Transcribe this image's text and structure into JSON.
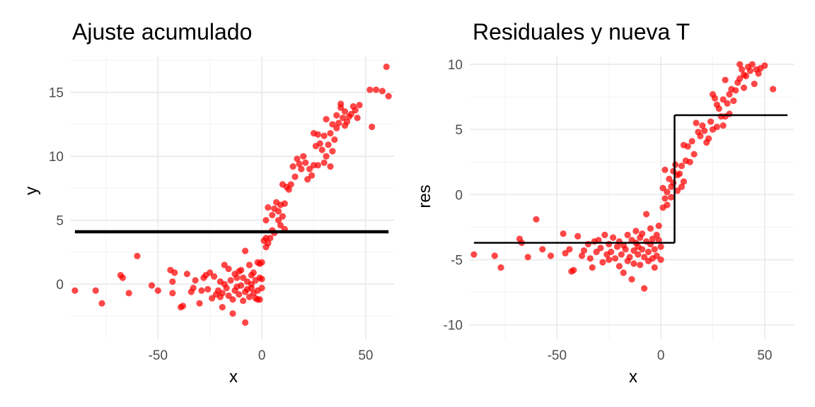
{
  "chart_data": [
    {
      "type": "scatter",
      "title": "Ajuste acumulado",
      "xlabel": "x",
      "ylabel": "y",
      "xlim": [
        -92,
        64
      ],
      "ylim": [
        -4.3,
        17.8
      ],
      "xticks": [
        -50,
        0,
        50
      ],
      "xtick_labels": [
        "-50",
        "0",
        "50"
      ],
      "yticks": [
        0,
        5,
        10,
        15
      ],
      "ytick_labels": [
        "0",
        "5",
        "10",
        "15"
      ],
      "grid": true,
      "legend": "none",
      "point_color": "#ff0000",
      "line_color": "#000000",
      "points": [
        [
          -90,
          -0.5
        ],
        [
          -80,
          -0.5
        ],
        [
          -77,
          -1.5
        ],
        [
          -68,
          0.7
        ],
        [
          -67,
          0.5
        ],
        [
          -64,
          -0.7
        ],
        [
          -60,
          2.2
        ],
        [
          -53,
          -0.1
        ],
        [
          -50,
          -0.5
        ],
        [
          -44,
          1.1
        ],
        [
          -43,
          -0.7
        ],
        [
          -43,
          0.2
        ],
        [
          -42,
          0.9
        ],
        [
          -39,
          -1.8
        ],
        [
          -38,
          -1.7
        ],
        [
          -36,
          0.8
        ],
        [
          -34,
          -0.6
        ],
        [
          -33,
          -0.3
        ],
        [
          -32,
          0.3
        ],
        [
          -30,
          -1.5
        ],
        [
          -29,
          -0.5
        ],
        [
          -28,
          0.5
        ],
        [
          -27,
          0.7
        ],
        [
          -26,
          -0.4
        ],
        [
          -25,
          0.9
        ],
        [
          -24,
          -1.1
        ],
        [
          -23,
          0.6
        ],
        [
          -22,
          -0.8
        ],
        [
          -21,
          -0.5
        ],
        [
          -20,
          -1.0
        ],
        [
          -20,
          0.2
        ],
        [
          -19,
          -0.7
        ],
        [
          -19,
          -1.8
        ],
        [
          -18,
          0.0
        ],
        [
          -18,
          1.5
        ],
        [
          -17,
          -0.3
        ],
        [
          -16,
          -0.9
        ],
        [
          -16,
          1.2
        ],
        [
          -15,
          0.3
        ],
        [
          -14,
          -1.2
        ],
        [
          -14,
          -2.3
        ],
        [
          -13,
          0.8
        ],
        [
          -13,
          -0.5
        ],
        [
          -12,
          -0.2
        ],
        [
          -12,
          0.5
        ],
        [
          -11,
          1.0
        ],
        [
          -11,
          -0.8
        ],
        [
          -10,
          -0.1
        ],
        [
          -10,
          1.1
        ],
        [
          -9,
          0.5
        ],
        [
          -9,
          -1.3
        ],
        [
          -8,
          -0.6
        ],
        [
          -8,
          2.6
        ],
        [
          -8,
          -3.0
        ],
        [
          -7,
          0.2
        ],
        [
          -7,
          -0.4
        ],
        [
          -6,
          1.5
        ],
        [
          -6,
          -1.0
        ],
        [
          -5,
          0.7
        ],
        [
          -5,
          0.0
        ],
        [
          -5,
          -0.3
        ],
        [
          -4,
          -0.7
        ],
        [
          -4,
          0.9
        ],
        [
          -3,
          -1.1
        ],
        [
          -3,
          0.3
        ],
        [
          -2,
          1.7
        ],
        [
          -2,
          -0.5
        ],
        [
          -2,
          -1.2
        ],
        [
          -1,
          0.5
        ],
        [
          -1,
          1.6
        ],
        [
          -1,
          -1.2
        ],
        [
          0,
          0.4
        ],
        [
          0,
          1.7
        ],
        [
          0,
          -0.3
        ],
        [
          1,
          3.4
        ],
        [
          2,
          2.9
        ],
        [
          2,
          5.0
        ],
        [
          2,
          3.6
        ],
        [
          3,
          3.2
        ],
        [
          3,
          6.0
        ],
        [
          4,
          3.6
        ],
        [
          5,
          4.2
        ],
        [
          5,
          5.4
        ],
        [
          6,
          5.9
        ],
        [
          6,
          4.0
        ],
        [
          7,
          6.4
        ],
        [
          8,
          5.0
        ],
        [
          8,
          5.7
        ],
        [
          9,
          6.2
        ],
        [
          9,
          4.6
        ],
        [
          10,
          5.3
        ],
        [
          10,
          7.8
        ],
        [
          11,
          6.3
        ],
        [
          11,
          4.3
        ],
        [
          12,
          7.6
        ],
        [
          13,
          7.4
        ],
        [
          14,
          7.8
        ],
        [
          15,
          9.2
        ],
        [
          16,
          8.4
        ],
        [
          17,
          9.8
        ],
        [
          18,
          9.4
        ],
        [
          19,
          9.0
        ],
        [
          20,
          10.0
        ],
        [
          21,
          9.5
        ],
        [
          22,
          8.2
        ],
        [
          23,
          9.0
        ],
        [
          24,
          8.5
        ],
        [
          25,
          11.8
        ],
        [
          25,
          9.3
        ],
        [
          26,
          10.8
        ],
        [
          27,
          11.7
        ],
        [
          27,
          9.3
        ],
        [
          28,
          11.0
        ],
        [
          29,
          10.5
        ],
        [
          30,
          11.6
        ],
        [
          30,
          9.5
        ],
        [
          31,
          12.9
        ],
        [
          31,
          10.0
        ],
        [
          32,
          10.9
        ],
        [
          33,
          11.8
        ],
        [
          33,
          9.2
        ],
        [
          34,
          10.4
        ],
        [
          34,
          12.5
        ],
        [
          35,
          11.3
        ],
        [
          36,
          12.2
        ],
        [
          36,
          13.2
        ],
        [
          37,
          12.6
        ],
        [
          38,
          13.8
        ],
        [
          38,
          14.1
        ],
        [
          39,
          13.0
        ],
        [
          40,
          13.5
        ],
        [
          40,
          12.4
        ],
        [
          41,
          12.7
        ],
        [
          42,
          13.1
        ],
        [
          43,
          13.3
        ],
        [
          44,
          13.9
        ],
        [
          45,
          13.6
        ],
        [
          46,
          13.0
        ],
        [
          47,
          14.0
        ],
        [
          52,
          15.2
        ],
        [
          53,
          12.3
        ],
        [
          55,
          15.2
        ],
        [
          58,
          15.1
        ],
        [
          60,
          17.0
        ],
        [
          61,
          14.7
        ]
      ],
      "fit_segments": [
        {
          "x": [
            -90,
            61
          ],
          "y": [
            4.1,
            4.1
          ]
        }
      ]
    },
    {
      "type": "scatter",
      "title": "Residuales y nueva T",
      "xlabel": "x",
      "ylabel": "res",
      "xlim": [
        -92,
        64
      ],
      "ylim": [
        -11.1,
        10.6
      ],
      "xticks": [
        -50,
        0,
        50
      ],
      "xtick_labels": [
        "-50",
        "0",
        "50"
      ],
      "yticks": [
        -10,
        -5,
        0,
        5,
        10
      ],
      "ytick_labels": [
        "-10",
        "-5",
        "0",
        "5",
        "10"
      ],
      "grid": true,
      "legend": "none",
      "point_color": "#ff0000",
      "line_color": "#000000",
      "points": [
        [
          -90,
          -4.6
        ],
        [
          -80,
          -4.7
        ],
        [
          -77,
          -5.6
        ],
        [
          -68,
          -3.4
        ],
        [
          -67,
          -3.7
        ],
        [
          -64,
          -4.8
        ],
        [
          -60,
          -1.9
        ],
        [
          -57,
          -4.2
        ],
        [
          -53,
          -4.7
        ],
        [
          -47,
          -3.0
        ],
        [
          -46,
          -4.5
        ],
        [
          -44,
          -4.2
        ],
        [
          -43,
          -5.9
        ],
        [
          -42,
          -5.8
        ],
        [
          -40,
          -3.2
        ],
        [
          -38,
          -4.7
        ],
        [
          -37,
          -4.3
        ],
        [
          -35,
          -3.8
        ],
        [
          -34,
          -4.9
        ],
        [
          -33,
          -5.6
        ],
        [
          -32,
          -3.6
        ],
        [
          -31,
          -4.4
        ],
        [
          -30,
          -3.5
        ],
        [
          -29,
          -4.1
        ],
        [
          -28,
          -5.2
        ],
        [
          -27,
          -3.1
        ],
        [
          -26,
          -4.6
        ],
        [
          -25,
          -3.8
        ],
        [
          -25,
          -5.0
        ],
        [
          -24,
          -4.4
        ],
        [
          -23,
          -3.3
        ],
        [
          -22,
          -4.9
        ],
        [
          -21,
          -4.0
        ],
        [
          -20,
          -5.5
        ],
        [
          -20,
          -3.6
        ],
        [
          -19,
          -4.6
        ],
        [
          -18,
          -3.9
        ],
        [
          -18,
          -6.0
        ],
        [
          -17,
          -4.2
        ],
        [
          -16,
          -5.1
        ],
        [
          -16,
          -3.1
        ],
        [
          -15,
          -4.8
        ],
        [
          -14,
          -3.5
        ],
        [
          -14,
          -6.5
        ],
        [
          -13,
          -4.3
        ],
        [
          -13,
          -5.3
        ],
        [
          -12,
          -3.7
        ],
        [
          -12,
          -2.8
        ],
        [
          -11,
          -4.6
        ],
        [
          -11,
          -4.0
        ],
        [
          -10,
          -3.3
        ],
        [
          -10,
          -5.4
        ],
        [
          -9,
          -4.2
        ],
        [
          -9,
          -3.0
        ],
        [
          -8,
          -7.2
        ],
        [
          -8,
          -4.8
        ],
        [
          -7,
          -3.6
        ],
        [
          -7,
          -1.5
        ],
        [
          -6,
          -4.4
        ],
        [
          -6,
          -5.1
        ],
        [
          -5,
          -3.8
        ],
        [
          -5,
          -2.6
        ],
        [
          -4,
          -4.9
        ],
        [
          -4,
          -3.4
        ],
        [
          -3,
          -4.2
        ],
        [
          -3,
          -5.6
        ],
        [
          -2,
          -3.1
        ],
        [
          -2,
          -4.7
        ],
        [
          -1,
          -3.5
        ],
        [
          -1,
          -2.4
        ],
        [
          0,
          -4.0
        ],
        [
          0,
          -5.0
        ],
        [
          1,
          -1.0
        ],
        [
          1,
          0.5
        ],
        [
          2,
          -0.3
        ],
        [
          2,
          1.9
        ],
        [
          3,
          0.2
        ],
        [
          3,
          -0.8
        ],
        [
          4,
          1.2
        ],
        [
          5,
          0.6
        ],
        [
          5,
          -0.2
        ],
        [
          6,
          1.8
        ],
        [
          6,
          0.9
        ],
        [
          7,
          2.3
        ],
        [
          8,
          1.5
        ],
        [
          8,
          0.3
        ],
        [
          9,
          1.6
        ],
        [
          10,
          2.2
        ],
        [
          10,
          0.6
        ],
        [
          11,
          1.0
        ],
        [
          11,
          3.8
        ],
        [
          12,
          2.6
        ],
        [
          13,
          3.7
        ],
        [
          14,
          2.5
        ],
        [
          15,
          4.1
        ],
        [
          16,
          3.1
        ],
        [
          17,
          5.5
        ],
        [
          18,
          4.8
        ],
        [
          19,
          4.5
        ],
        [
          20,
          5.3
        ],
        [
          21,
          4.9
        ],
        [
          22,
          4.0
        ],
        [
          23,
          4.3
        ],
        [
          24,
          5.6
        ],
        [
          25,
          7.7
        ],
        [
          25,
          5.0
        ],
        [
          26,
          7.4
        ],
        [
          27,
          6.9
        ],
        [
          27,
          5.2
        ],
        [
          28,
          6.6
        ],
        [
          29,
          6.0
        ],
        [
          30,
          7.3
        ],
        [
          30,
          5.3
        ],
        [
          31,
          8.8
        ],
        [
          31,
          6.0
        ],
        [
          32,
          7.0
        ],
        [
          33,
          7.7
        ],
        [
          33,
          6.2
        ],
        [
          34,
          8.1
        ],
        [
          35,
          7.2
        ],
        [
          36,
          8.0
        ],
        [
          37,
          8.6
        ],
        [
          38,
          8.9
        ],
        [
          38,
          10.0
        ],
        [
          39,
          9.6
        ],
        [
          40,
          9.2
        ],
        [
          40,
          8.2
        ],
        [
          41,
          9.1
        ],
        [
          42,
          9.8
        ],
        [
          43,
          9.5
        ],
        [
          44,
          10.0
        ],
        [
          45,
          8.5
        ],
        [
          46,
          9.6
        ],
        [
          47,
          9.3
        ],
        [
          48,
          9.7
        ],
        [
          50,
          9.9
        ],
        [
          54,
          8.1
        ]
      ],
      "fit_segments": [
        {
          "x": [
            -90,
            6.6
          ],
          "y": [
            -3.7,
            -3.7
          ]
        },
        {
          "x": [
            6.6,
            6.6
          ],
          "y": [
            -3.7,
            6.1
          ]
        },
        {
          "x": [
            6.6,
            61
          ],
          "y": [
            6.1,
            6.1
          ]
        }
      ]
    }
  ]
}
